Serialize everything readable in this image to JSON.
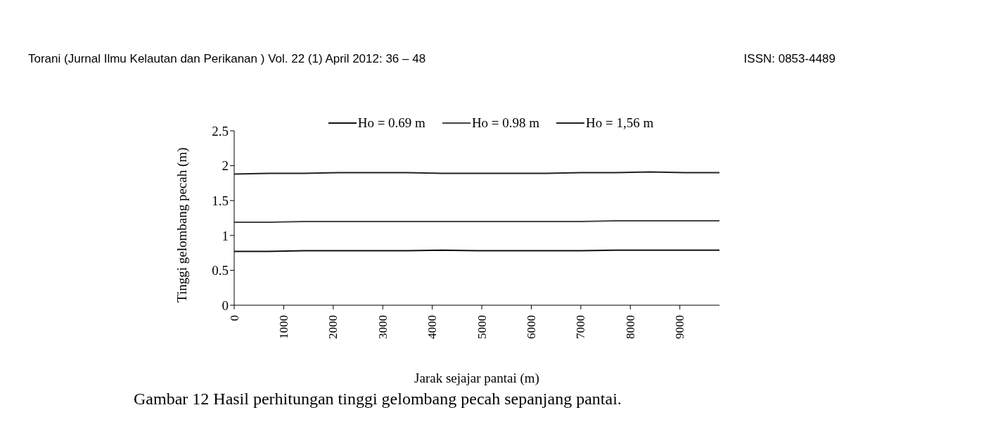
{
  "chart_data": {
    "type": "line",
    "xlabel": "Jarak sejajar pantai (m)",
    "ylabel": "Tinggi gelombang pecah (m)",
    "annotations": [
      "Torani (Jurnal Ilmu Kelautan dan Perikanan )  Vol. 22 (1) April  2012:  36 – 48",
      "ISSN: 0853-4489",
      "Gambar 12  Hasil perhitungan tinggi gelombang pecah sepanjang pantai."
    ],
    "x": [
      0,
      700,
      1400,
      2100,
      2800,
      3500,
      4200,
      4900,
      5600,
      6300,
      7000,
      7700,
      8400,
      9100,
      9800
    ],
    "series": [
      {
        "name": "Ho = 0.69 m",
        "color": "#111111",
        "values": [
          0.77,
          0.77,
          0.78,
          0.78,
          0.78,
          0.78,
          0.79,
          0.78,
          0.78,
          0.78,
          0.78,
          0.79,
          0.79,
          0.79,
          0.79
        ]
      },
      {
        "name": "Ho = 0.98 m",
        "color": "#444444",
        "values": [
          1.19,
          1.19,
          1.2,
          1.2,
          1.2,
          1.2,
          1.2,
          1.2,
          1.2,
          1.2,
          1.2,
          1.21,
          1.21,
          1.21,
          1.21
        ]
      },
      {
        "name": "Ho = 1,56 m",
        "color": "#222222",
        "values": [
          1.88,
          1.89,
          1.89,
          1.9,
          1.9,
          1.9,
          1.89,
          1.89,
          1.89,
          1.89,
          1.9,
          1.9,
          1.91,
          1.9,
          1.9
        ]
      }
    ],
    "xlim": [
      0,
      9800
    ],
    "xticks": [
      0,
      1000,
      2000,
      3000,
      4000,
      5000,
      6000,
      7000,
      8000,
      9000
    ],
    "ylim": [
      0,
      2.5
    ],
    "yticks": [
      0,
      0.5,
      1,
      1.5,
      2,
      2.5
    ],
    "grid": false,
    "legend": "top",
    "marker": "none",
    "line_style": "solid"
  }
}
